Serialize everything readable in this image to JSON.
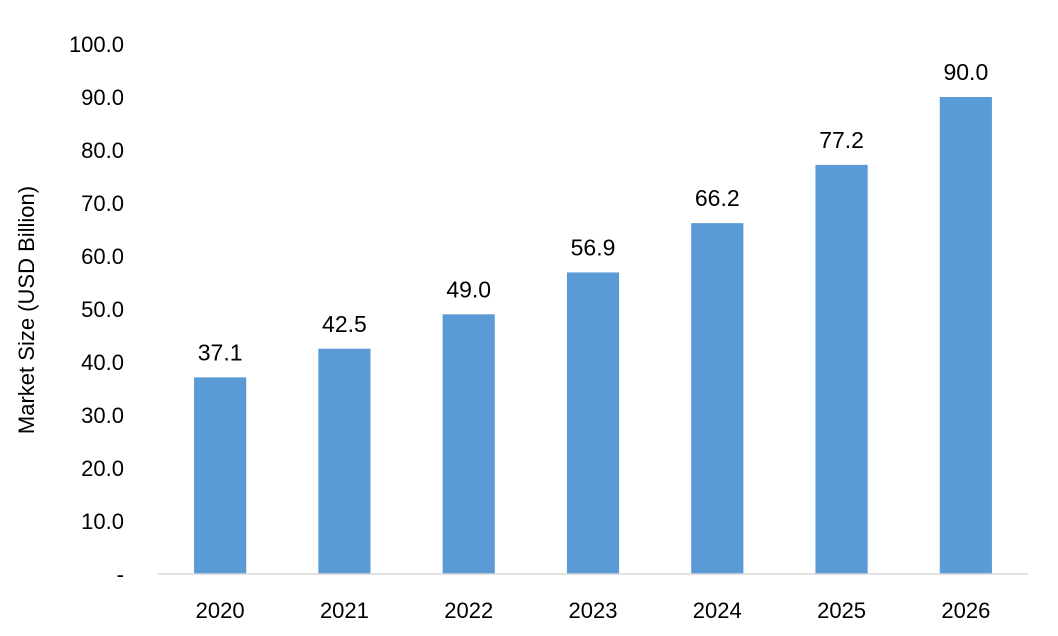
{
  "chart_data": {
    "type": "bar",
    "ylabel": "Market Size (USD Billion)",
    "xlabel": "",
    "categories": [
      "2020",
      "2021",
      "2022",
      "2023",
      "2024",
      "2025",
      "2026"
    ],
    "values": [
      37.1,
      42.5,
      49.0,
      56.9,
      66.2,
      77.2,
      90.0
    ],
    "data_labels": [
      "37.1",
      "42.5",
      "49.0",
      "56.9",
      "66.2",
      "77.2",
      "90.0"
    ],
    "ylim": [
      0,
      100
    ],
    "y_ticks": [
      "-",
      "10.0",
      "20.0",
      "30.0",
      "40.0",
      "50.0",
      "60.0",
      "70.0",
      "80.0",
      "90.0",
      "100.0"
    ],
    "grid": false,
    "legend": "none",
    "bar_color": "#5B9BD5",
    "axis_color": "#D9D9D9"
  }
}
